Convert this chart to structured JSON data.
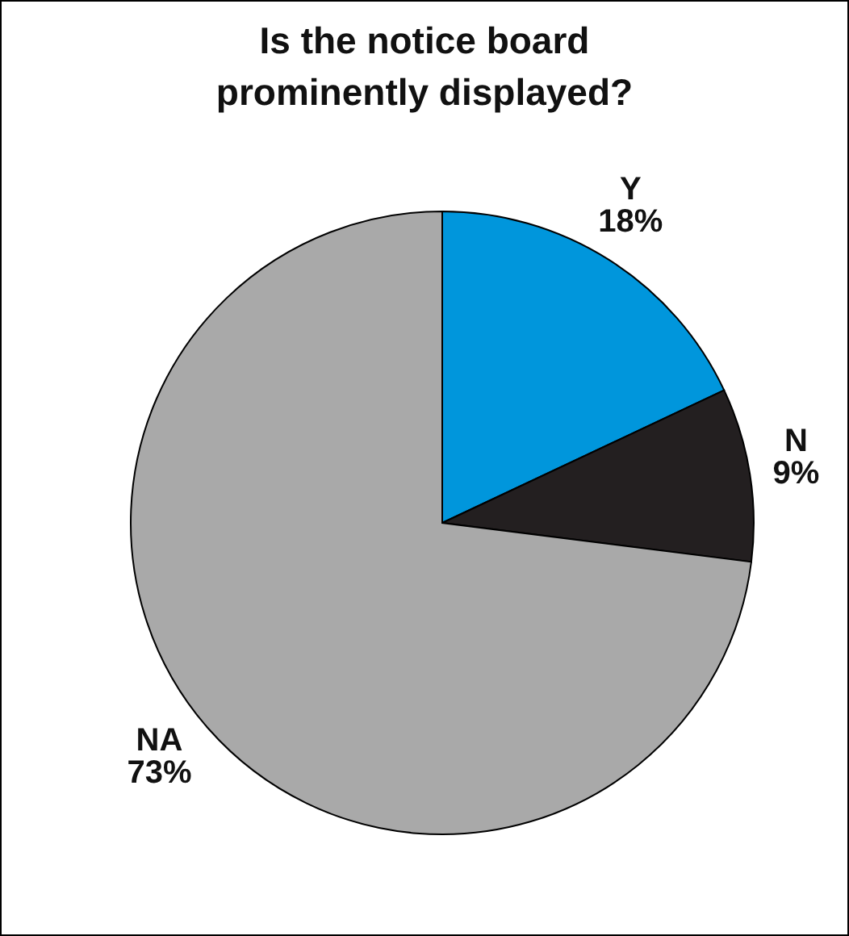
{
  "chart_data": {
    "type": "pie",
    "title": "Is the notice board\nprominently displayed?",
    "categories": [
      "Y",
      "N",
      "NA"
    ],
    "values": [
      18,
      9,
      73
    ],
    "value_labels": [
      "18%",
      "9%",
      "73%"
    ],
    "colors": [
      "#0096dc",
      "#231f20",
      "#a9a9a9"
    ]
  }
}
